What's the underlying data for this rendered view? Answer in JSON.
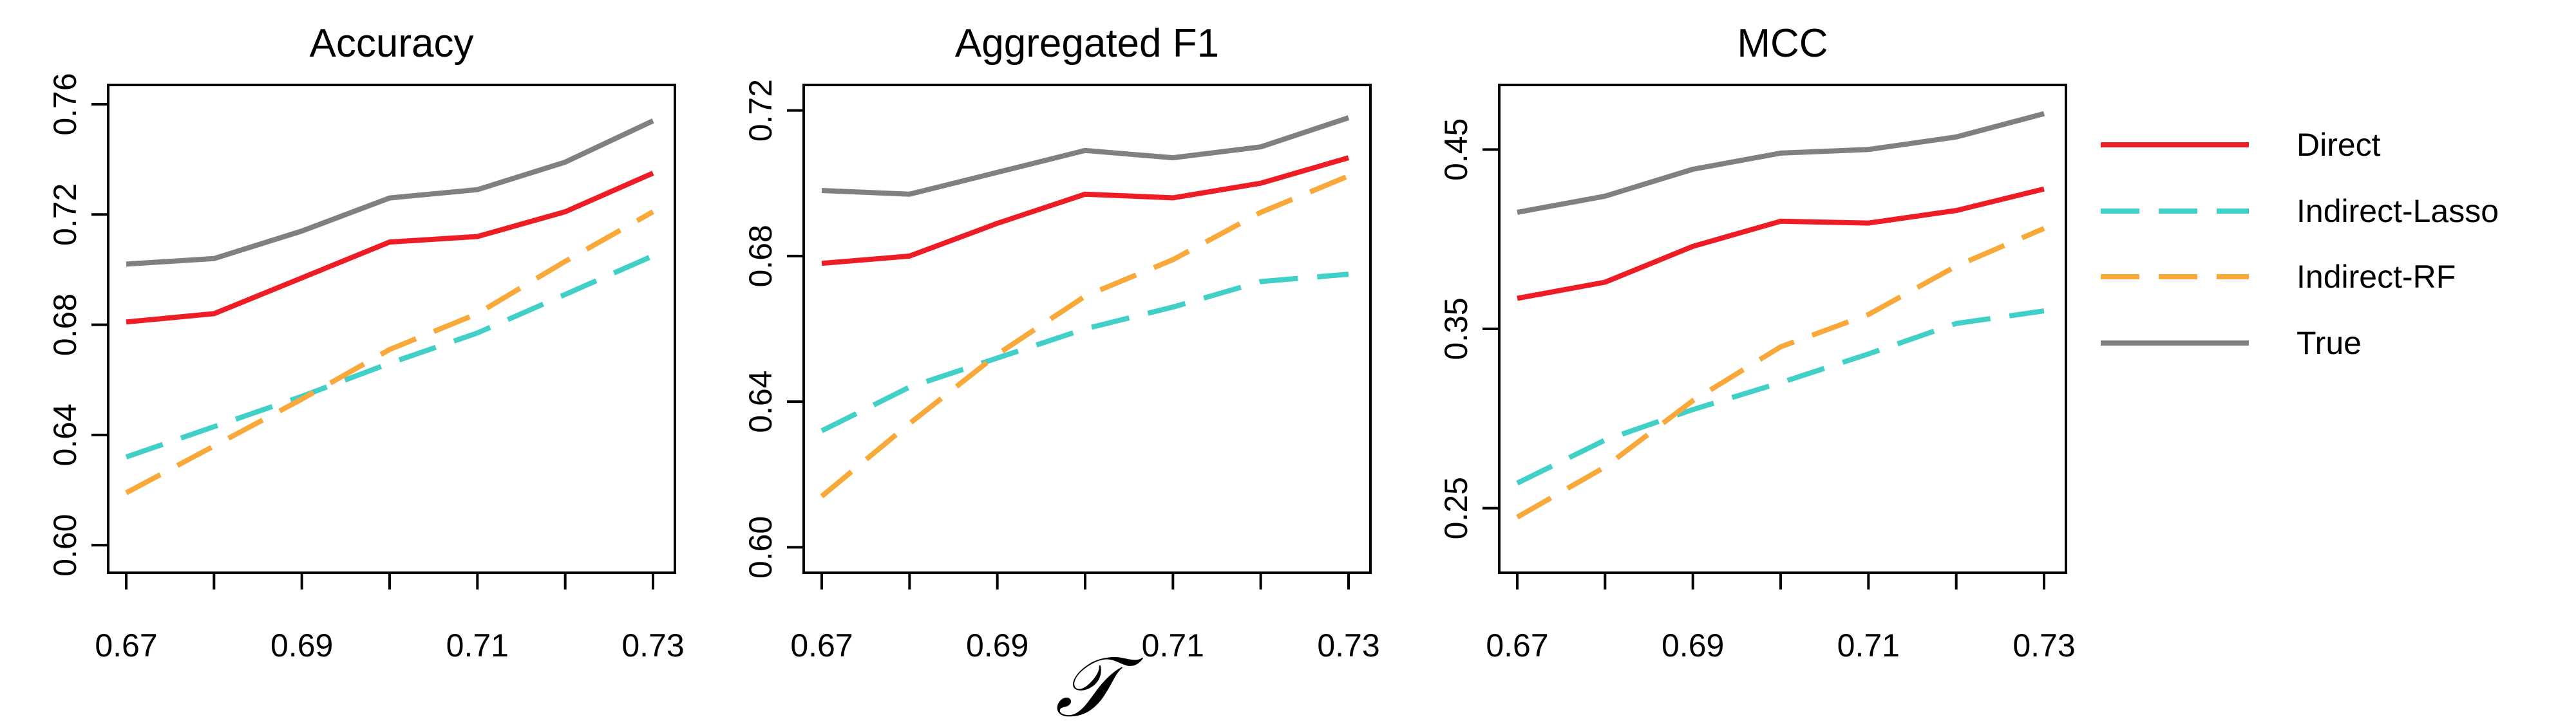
{
  "chart_data": {
    "type": "line",
    "x_axis_symbol": "𝒯",
    "x": [
      0.67,
      0.68,
      0.69,
      0.7,
      0.71,
      0.72,
      0.73
    ],
    "xticks": [
      "0.67",
      "0.69",
      "0.71",
      "0.73"
    ],
    "legend": {
      "placement": "right",
      "entries": [
        {
          "name": "Direct",
          "color": "#ee1c25",
          "dash": "solid"
        },
        {
          "name": "Indirect-Lasso",
          "color": "#40d0c8",
          "dash": "dashed"
        },
        {
          "name": "Indirect-RF",
          "color": "#f9a93a",
          "dash": "dashed"
        },
        {
          "name": "True",
          "color": "#808080",
          "dash": "solid"
        }
      ]
    },
    "panels": [
      {
        "title": "Accuracy",
        "ylim": [
          0.59,
          0.767
        ],
        "yticks": [
          "0.60",
          "0.64",
          "0.68",
          "0.72",
          "0.76"
        ],
        "series": [
          {
            "name": "Direct",
            "values": [
              0.681,
              0.684,
              0.697,
              0.71,
              0.712,
              0.721,
              0.735
            ]
          },
          {
            "name": "Indirect-Lasso",
            "values": [
              0.632,
              0.643,
              0.654,
              0.666,
              0.677,
              0.691,
              0.705
            ]
          },
          {
            "name": "Indirect-RF",
            "values": [
              0.619,
              0.636,
              0.653,
              0.671,
              0.684,
              0.703,
              0.721
            ]
          },
          {
            "name": "True",
            "values": [
              0.702,
              0.704,
              0.714,
              0.726,
              0.729,
              0.739,
              0.754
            ]
          }
        ]
      },
      {
        "title": "Aggregated F1",
        "ylim": [
          0.593,
          0.727
        ],
        "yticks": [
          "0.60",
          "0.64",
          "0.68",
          "0.72"
        ],
        "series": [
          {
            "name": "Direct",
            "values": [
              0.678,
              0.68,
              0.689,
              0.697,
              0.696,
              0.7,
              0.707
            ]
          },
          {
            "name": "Indirect-Lasso",
            "values": [
              0.632,
              0.644,
              0.652,
              0.66,
              0.666,
              0.673,
              0.675
            ]
          },
          {
            "name": "Indirect-RF",
            "values": [
              0.614,
              0.634,
              0.653,
              0.669,
              0.679,
              0.692,
              0.702
            ]
          },
          {
            "name": "True",
            "values": [
              0.698,
              0.697,
              0.703,
              0.709,
              0.707,
              0.71,
              0.718
            ]
          }
        ]
      },
      {
        "title": "MCC",
        "ylim": [
          0.214,
          0.486
        ],
        "yticks": [
          "0.25",
          "0.35",
          "0.45"
        ],
        "series": [
          {
            "name": "Direct",
            "values": [
              0.367,
              0.376,
              0.396,
              0.41,
              0.409,
              0.416,
              0.428
            ]
          },
          {
            "name": "Indirect-Lasso",
            "values": [
              0.264,
              0.288,
              0.305,
              0.32,
              0.336,
              0.353,
              0.36
            ]
          },
          {
            "name": "Indirect-RF",
            "values": [
              0.245,
              0.273,
              0.31,
              0.34,
              0.358,
              0.385,
              0.406
            ]
          },
          {
            "name": "True",
            "values": [
              0.415,
              0.424,
              0.439,
              0.448,
              0.45,
              0.457,
              0.47
            ]
          }
        ]
      }
    ]
  }
}
